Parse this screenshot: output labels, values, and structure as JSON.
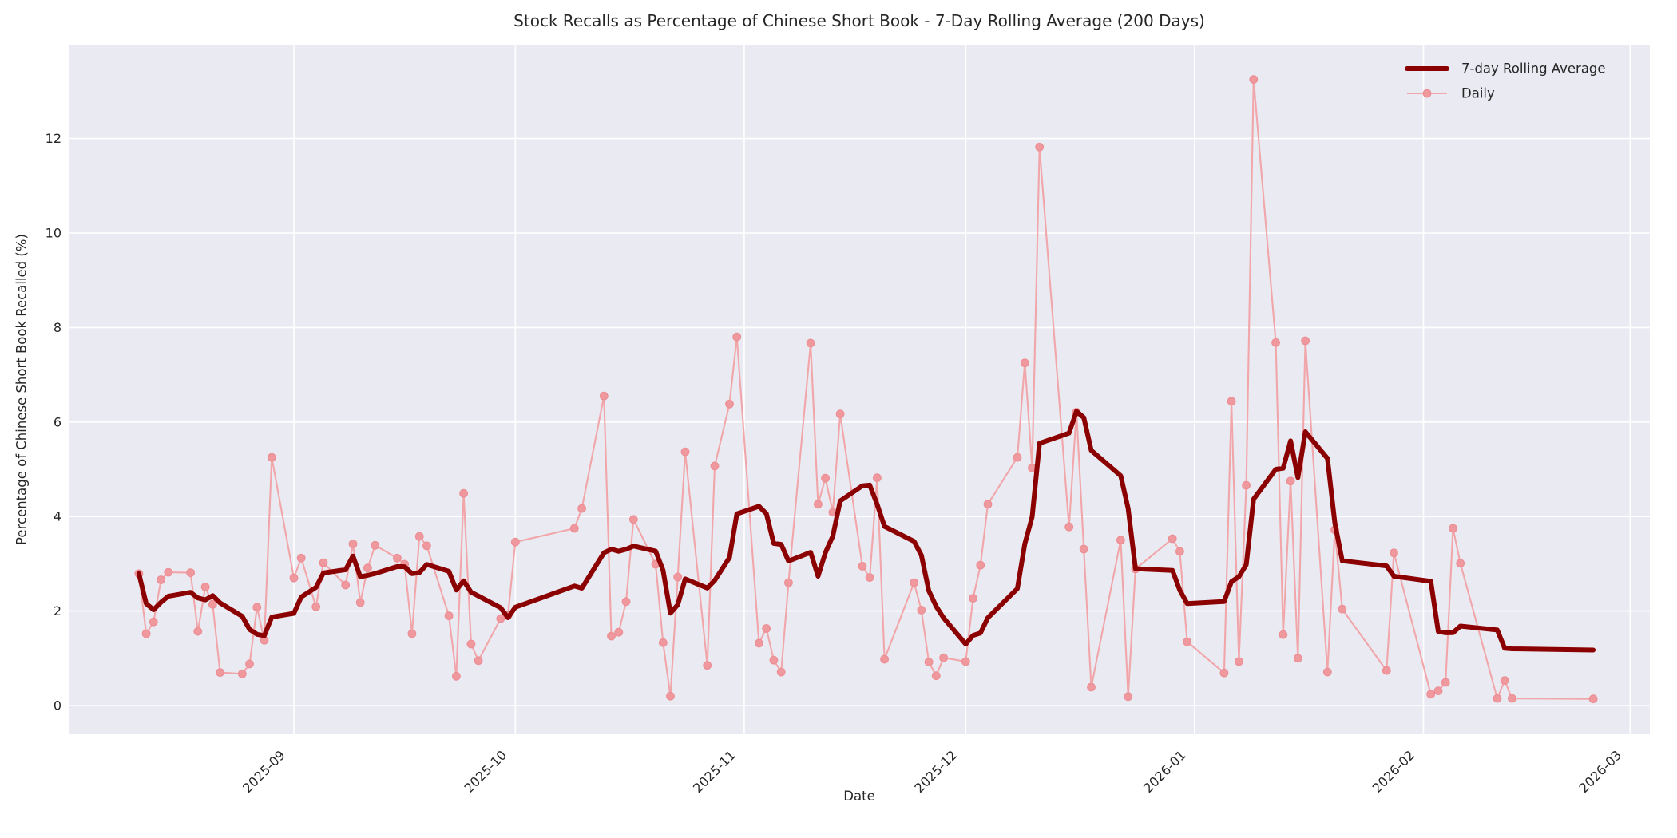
{
  "figure": {
    "title": "Stock Recalls as Percentage of Chinese Short Book - 7-Day Rolling Average (200 Days)"
  },
  "axes": {
    "xlabel": "Date",
    "ylabel": "Percentage of Chinese Short Book Recalled (%)",
    "yticks": [
      0,
      2,
      4,
      6,
      8,
      10,
      12
    ],
    "xticks": [
      "2025-09",
      "2025-10",
      "2025-11",
      "2025-12",
      "2026-01",
      "2026-02",
      "2026-03"
    ]
  },
  "legend": {
    "items": [
      {
        "label": "7-day Rolling Average",
        "type": "rolling"
      },
      {
        "label": "Daily",
        "type": "daily"
      }
    ]
  },
  "colors": {
    "rolling": "#8B0000",
    "daily_line": "#F1A6AA",
    "daily_marker": "#EF989D",
    "daily_marker_edge": "#EC8F95",
    "plot_bg": "#EAEAF2",
    "grid": "#FFFFFF",
    "text": "#262626"
  },
  "chart_data": {
    "type": "line",
    "title": "Stock Recalls as Percentage of Chinese Short Book - 7-Day Rolling Average (200 Days)",
    "xlabel": "Date",
    "ylabel": "Percentage of Chinese Short Book Recalled (%)",
    "x_tick_labels": [
      "2025-09",
      "2025-10",
      "2025-11",
      "2025-12",
      "2026-01",
      "2026-02",
      "2026-03"
    ],
    "y_ticks": [
      0,
      2,
      4,
      6,
      8,
      10,
      12
    ],
    "ylim": [
      -0.6,
      14.0
    ],
    "grid": true,
    "legend_position": "upper right",
    "rolling_window": 7,
    "series": [
      {
        "name": "Daily",
        "points": [
          [
            "2025-08-11",
            2.79
          ],
          [
            "2025-08-12",
            1.52
          ],
          [
            "2025-08-13",
            1.77
          ],
          [
            "2025-08-14",
            2.66
          ],
          [
            "2025-08-15",
            2.82
          ],
          [
            "2025-08-18",
            2.81
          ],
          [
            "2025-08-19",
            1.57
          ],
          [
            "2025-08-20",
            2.51
          ],
          [
            "2025-08-21",
            2.14
          ],
          [
            "2025-08-22",
            0.7
          ],
          [
            "2025-08-25",
            0.67
          ],
          [
            "2025-08-26",
            0.88
          ],
          [
            "2025-08-27",
            2.08
          ],
          [
            "2025-08-28",
            1.38
          ],
          [
            "2025-08-29",
            5.25
          ],
          [
            "2025-09-01",
            2.7
          ],
          [
            "2025-09-02",
            3.12
          ],
          [
            "2025-09-04",
            2.09
          ],
          [
            "2025-09-05",
            3.02
          ],
          [
            "2025-09-08",
            2.55
          ],
          [
            "2025-09-09",
            3.42
          ],
          [
            "2025-09-10",
            2.18
          ],
          [
            "2025-09-11",
            2.91
          ],
          [
            "2025-09-12",
            3.39
          ],
          [
            "2025-09-15",
            3.12
          ],
          [
            "2025-09-16",
            2.99
          ],
          [
            "2025-09-17",
            1.52
          ],
          [
            "2025-09-18",
            3.58
          ],
          [
            "2025-09-19",
            3.38
          ],
          [
            "2025-09-22",
            1.9
          ],
          [
            "2025-09-23",
            0.62
          ],
          [
            "2025-09-24",
            4.49
          ],
          [
            "2025-09-25",
            1.3
          ],
          [
            "2025-09-26",
            0.95
          ],
          [
            "2025-09-29",
            1.84
          ],
          [
            "2025-09-30",
            1.91
          ],
          [
            "2025-10-01",
            3.46
          ],
          [
            "2025-10-09",
            3.75
          ],
          [
            "2025-10-10",
            4.17
          ],
          [
            "2025-10-13",
            6.55
          ],
          [
            "2025-10-14",
            1.47
          ],
          [
            "2025-10-15",
            1.55
          ],
          [
            "2025-10-16",
            2.2
          ],
          [
            "2025-10-17",
            3.94
          ],
          [
            "2025-10-20",
            2.99
          ],
          [
            "2025-10-21",
            1.33
          ],
          [
            "2025-10-22",
            0.2
          ],
          [
            "2025-10-23",
            2.72
          ],
          [
            "2025-10-24",
            5.37
          ],
          [
            "2025-10-27",
            0.85
          ],
          [
            "2025-10-28",
            5.07
          ],
          [
            "2025-10-30",
            6.38
          ],
          [
            "2025-10-31",
            7.8
          ],
          [
            "2025-11-03",
            1.32
          ],
          [
            "2025-11-04",
            1.63
          ],
          [
            "2025-11-05",
            0.96
          ],
          [
            "2025-11-06",
            0.71
          ],
          [
            "2025-11-07",
            2.6
          ],
          [
            "2025-11-10",
            7.67
          ],
          [
            "2025-11-11",
            4.26
          ],
          [
            "2025-11-12",
            4.81
          ],
          [
            "2025-11-13",
            4.09
          ],
          [
            "2025-11-14",
            6.17
          ],
          [
            "2025-11-17",
            2.95
          ],
          [
            "2025-11-18",
            2.71
          ],
          [
            "2025-11-19",
            4.82
          ],
          [
            "2025-11-20",
            0.98
          ],
          [
            "2025-11-24",
            2.6
          ],
          [
            "2025-11-25",
            2.02
          ],
          [
            "2025-11-26",
            0.92
          ],
          [
            "2025-11-27",
            0.63
          ],
          [
            "2025-11-28",
            1.01
          ],
          [
            "2025-12-01",
            0.93
          ],
          [
            "2025-12-02",
            2.27
          ],
          [
            "2025-12-03",
            2.97
          ],
          [
            "2025-12-04",
            4.26
          ],
          [
            "2025-12-08",
            5.25
          ],
          [
            "2025-12-09",
            7.25
          ],
          [
            "2025-12-10",
            5.03
          ],
          [
            "2025-12-11",
            11.82
          ],
          [
            "2025-12-15",
            3.78
          ],
          [
            "2025-12-16",
            6.21
          ],
          [
            "2025-12-17",
            3.31
          ],
          [
            "2025-12-18",
            0.39
          ],
          [
            "2025-12-22",
            3.5
          ],
          [
            "2025-12-23",
            0.19
          ],
          [
            "2025-12-24",
            2.89
          ],
          [
            "2025-12-29",
            3.53
          ],
          [
            "2025-12-30",
            3.26
          ],
          [
            "2025-12-31",
            1.35
          ],
          [
            "2026-01-05",
            0.69
          ],
          [
            "2026-01-06",
            6.44
          ],
          [
            "2026-01-07",
            0.93
          ],
          [
            "2026-01-08",
            4.66
          ],
          [
            "2026-01-09",
            13.25
          ],
          [
            "2026-01-12",
            7.68
          ],
          [
            "2026-01-13",
            1.5
          ],
          [
            "2026-01-14",
            4.75
          ],
          [
            "2026-01-15",
            1.0
          ],
          [
            "2026-01-16",
            7.72
          ],
          [
            "2026-01-19",
            0.71
          ],
          [
            "2026-01-20",
            3.72
          ],
          [
            "2026-01-21",
            2.04
          ],
          [
            "2026-01-27",
            0.74
          ],
          [
            "2026-01-28",
            3.23
          ],
          [
            "2026-02-02",
            0.24
          ],
          [
            "2026-02-03",
            0.31
          ],
          [
            "2026-02-04",
            0.49
          ],
          [
            "2026-02-05",
            3.75
          ],
          [
            "2026-02-06",
            3.01
          ],
          [
            "2026-02-11",
            0.15
          ],
          [
            "2026-02-12",
            0.53
          ],
          [
            "2026-02-13",
            0.15
          ],
          [
            "2026-02-24",
            0.14
          ]
        ]
      },
      {
        "name": "7-day Rolling Average",
        "derived_from": "Daily",
        "derivation": "rolling mean, window 7 points, min_periods 1"
      }
    ]
  }
}
